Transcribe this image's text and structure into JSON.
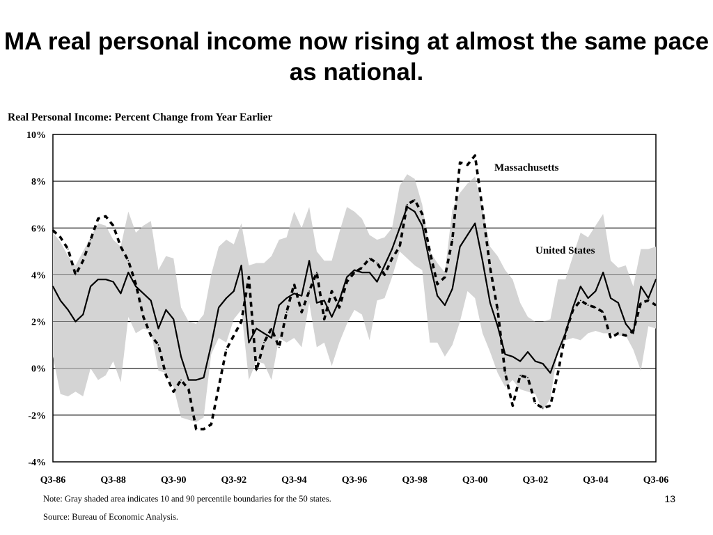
{
  "slide": {
    "title": "MA real personal income now rising at almost the same pace as national.",
    "page_number": "13"
  },
  "notes": {
    "note": "Note: Gray shaded area indicates 10 and 90 percentile boundaries for the 50 states.",
    "source": "Source: Bureau of  Economic Analysis."
  },
  "chart_data": {
    "type": "line",
    "title": "Real Personal Income: Percent Change from Year Earlier",
    "xlabel": "",
    "ylabel": "",
    "ylim": [
      -4,
      10
    ],
    "y_ticks": [
      "-4%",
      "-2%",
      "0%",
      "2%",
      "4%",
      "6%",
      "8%",
      "10%"
    ],
    "x_range": [
      1986.5,
      2006.5
    ],
    "x_ticks": [
      "Q3-86",
      "Q3-88",
      "Q3-90",
      "Q3-92",
      "Q3-94",
      "Q3-96",
      "Q3-98",
      "Q3-00",
      "Q3-02",
      "Q3-04",
      "Q3-06"
    ],
    "grid": "horizontal",
    "colors": {
      "band": "#d4d4d4",
      "line": "#000000"
    },
    "x": [
      1986.5,
      1986.75,
      1987,
      1987.25,
      1987.5,
      1987.75,
      1988,
      1988.25,
      1988.5,
      1988.75,
      1989,
      1989.25,
      1989.5,
      1989.75,
      1990,
      1990.25,
      1990.5,
      1990.75,
      1991,
      1991.25,
      1991.5,
      1991.75,
      1992,
      1992.25,
      1992.5,
      1992.75,
      1993,
      1993.25,
      1993.5,
      1993.75,
      1994,
      1994.25,
      1994.5,
      1994.75,
      1995,
      1995.25,
      1995.5,
      1995.75,
      1996,
      1996.25,
      1996.5,
      1996.75,
      1997,
      1997.25,
      1997.5,
      1997.75,
      1998,
      1998.25,
      1998.5,
      1998.75,
      1999,
      1999.25,
      1999.5,
      1999.75,
      2000,
      2000.25,
      2000.5,
      2000.75,
      2001,
      2001.25,
      2001.5,
      2001.75,
      2002,
      2002.25,
      2002.5,
      2002.75,
      2003,
      2003.25,
      2003.5,
      2003.75,
      2004,
      2004.25,
      2004.5,
      2004.75,
      2005,
      2005.25,
      2005.5,
      2005.75,
      2006,
      2006.25,
      2006.5
    ],
    "band": {
      "name": "10 and 90 percentile boundaries",
      "upper": [
        5.8,
        5.4,
        4.8,
        4.4,
        5.0,
        5.6,
        6.2,
        6.1,
        5.5,
        5.2,
        6.7,
        5.8,
        6.1,
        6.3,
        4.2,
        4.8,
        4.7,
        2.6,
        2.0,
        1.9,
        2.3,
        4.0,
        5.2,
        5.5,
        5.3,
        6.2,
        4.4,
        4.5,
        4.5,
        4.8,
        5.5,
        5.6,
        6.7,
        6.0,
        6.9,
        5.0,
        4.6,
        4.6,
        5.8,
        6.9,
        6.7,
        6.4,
        5.7,
        5.5,
        5.6,
        6.0,
        7.8,
        8.3,
        8.1,
        7.0,
        5.0,
        4.5,
        4.1,
        6.8,
        7.5,
        7.9,
        8.2,
        6.8,
        5.2,
        4.8,
        4.2,
        3.8,
        2.8,
        2.2,
        2.0,
        2.0,
        2.1,
        3.8,
        3.8,
        4.8,
        5.8,
        5.6,
        6.1,
        6.6,
        4.6,
        4.3,
        4.4,
        3.5,
        5.1,
        5.1,
        5.2
      ],
      "lower": [
        0.5,
        -1.1,
        -1.2,
        -1.0,
        -1.2,
        0.0,
        -0.5,
        -0.3,
        0.3,
        -0.6,
        2.2,
        1.5,
        1.7,
        1.6,
        -0.1,
        -0.2,
        -0.8,
        -2.1,
        -2.2,
        -2.3,
        -2.1,
        0.6,
        1.3,
        1.1,
        2.1,
        2.5,
        -0.5,
        0.3,
        0.2,
        -0.5,
        1.3,
        1.1,
        1.3,
        0.9,
        2.8,
        0.9,
        1.1,
        0.1,
        1.1,
        1.9,
        2.5,
        2.3,
        1.2,
        2.9,
        3.0,
        3.9,
        5.0,
        4.7,
        4.4,
        4.2,
        1.1,
        1.1,
        0.5,
        1.0,
        2.0,
        3.3,
        3.0,
        1.5,
        0.7,
        -0.2,
        -0.8,
        -0.5,
        -0.9,
        -1.0,
        -1.1,
        -1.8,
        -1.3,
        0.8,
        1.2,
        1.3,
        1.2,
        1.5,
        1.6,
        1.5,
        1.5,
        1.4,
        1.4,
        0.8,
        -0.1,
        1.8,
        1.7
      ]
    },
    "series": [
      {
        "name": "Massachusetts",
        "style": "dashed",
        "values": [
          5.9,
          5.6,
          5.1,
          4.0,
          4.6,
          5.5,
          6.4,
          6.5,
          6.1,
          5.2,
          4.6,
          3.6,
          2.2,
          1.4,
          1.0,
          -0.3,
          -1.0,
          -0.5,
          -0.9,
          -2.6,
          -2.6,
          -2.4,
          -0.8,
          0.8,
          1.4,
          2.0,
          3.9,
          -0.1,
          1.1,
          1.7,
          0.9,
          2.4,
          3.6,
          2.4,
          3.3,
          4.1,
          2.1,
          3.3,
          2.6,
          3.7,
          4.1,
          4.3,
          4.7,
          4.5,
          4.0,
          4.7,
          5.2,
          7.0,
          7.2,
          6.6,
          5.0,
          3.6,
          3.9,
          5.5,
          8.8,
          8.7,
          9.1,
          6.8,
          4.3,
          2.5,
          -0.2,
          -1.6,
          -0.3,
          -0.4,
          -1.5,
          -1.7,
          -1.6,
          -0.2,
          1.5,
          2.5,
          2.9,
          2.7,
          2.6,
          2.4,
          1.3,
          1.5,
          1.4,
          1.6,
          2.8,
          2.9,
          2.7
        ]
      },
      {
        "name": "United States",
        "style": "solid",
        "values": [
          3.5,
          2.9,
          2.5,
          2.0,
          2.3,
          3.5,
          3.8,
          3.8,
          3.7,
          3.2,
          4.1,
          3.5,
          3.2,
          2.9,
          1.7,
          2.5,
          2.1,
          0.5,
          -0.5,
          -0.5,
          -0.4,
          1.0,
          2.6,
          3.0,
          3.3,
          4.4,
          1.1,
          1.7,
          1.5,
          1.3,
          2.7,
          3.0,
          3.2,
          3.1,
          4.6,
          2.8,
          2.9,
          2.2,
          2.9,
          3.9,
          4.2,
          4.1,
          4.1,
          3.7,
          4.4,
          5.1,
          6.0,
          6.9,
          6.7,
          6.1,
          4.5,
          3.1,
          2.7,
          3.4,
          5.2,
          5.7,
          6.2,
          4.6,
          2.8,
          1.8,
          0.6,
          0.5,
          0.3,
          0.7,
          0.3,
          0.2,
          -0.2,
          0.7,
          1.5,
          2.6,
          3.5,
          3.0,
          3.3,
          4.1,
          3.0,
          2.8,
          1.9,
          1.5,
          3.5,
          3.0,
          3.8
        ]
      }
    ]
  }
}
